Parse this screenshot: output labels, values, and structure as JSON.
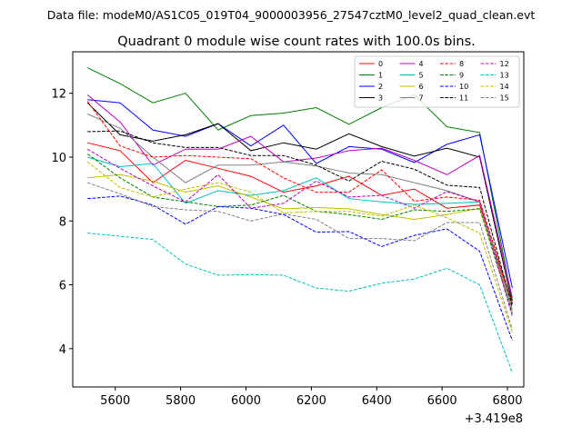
{
  "chart_data": {
    "type": "line",
    "suptitle": "Data file: modeM0/AS1C05_019T04_9000003956_27547cztM0_level2_quad_clean.evt",
    "title": "Quadrant 0 module wise count rates with 100.0s bins.",
    "xlabel": "",
    "ylabel": "",
    "x_offset_label": "+3.419e8",
    "xlim": [
      5470,
      6850
    ],
    "ylim": [
      2.8,
      13.3
    ],
    "xticks": [
      5600,
      5800,
      6000,
      6200,
      6400,
      6600,
      6800
    ],
    "yticks": [
      4,
      6,
      8,
      10,
      12
    ],
    "legend_position": "top-right",
    "grid": false,
    "x": [
      5515,
      5615,
      5715,
      5815,
      5915,
      6015,
      6115,
      6215,
      6315,
      6415,
      6515,
      6615,
      6715,
      6815
    ],
    "series": [
      {
        "name": "0",
        "color": "#ff0000",
        "dash": "solid",
        "values": [
          10.45,
          10.2,
          9.2,
          9.9,
          9.65,
          9.4,
          8.9,
          9.1,
          9.4,
          8.8,
          9.0,
          8.4,
          8.5,
          5.4
        ]
      },
      {
        "name": "1",
        "color": "#008000",
        "dash": "solid",
        "values": [
          12.8,
          12.3,
          11.7,
          12.0,
          10.85,
          11.3,
          11.38,
          11.55,
          11.03,
          11.55,
          11.95,
          10.95,
          10.77,
          5.5
        ]
      },
      {
        "name": "2",
        "color": "#0000ff",
        "dash": "solid",
        "values": [
          11.8,
          11.7,
          10.85,
          10.65,
          11.05,
          10.35,
          11.0,
          9.8,
          10.33,
          10.25,
          9.83,
          10.4,
          10.7,
          5.9
        ]
      },
      {
        "name": "3",
        "color": "#000000",
        "dash": "solid",
        "values": [
          11.7,
          10.7,
          10.5,
          10.7,
          11.05,
          10.2,
          10.45,
          10.25,
          10.73,
          10.33,
          10.03,
          10.28,
          10.0,
          5.4
        ]
      },
      {
        "name": "4",
        "color": "#bf00bf",
        "dash": "solid",
        "values": [
          11.95,
          11.1,
          9.75,
          10.25,
          10.25,
          10.65,
          9.85,
          9.97,
          10.2,
          10.28,
          9.9,
          9.45,
          10.05,
          5.6
        ]
      },
      {
        "name": "5",
        "color": "#00bfbf",
        "dash": "solid",
        "values": [
          10.0,
          9.7,
          9.8,
          8.55,
          8.95,
          8.8,
          8.95,
          9.35,
          8.7,
          8.6,
          8.52,
          8.55,
          8.6,
          5.2
        ]
      },
      {
        "name": "6",
        "color": "#bfbf00",
        "dash": "solid",
        "values": [
          9.35,
          9.45,
          9.25,
          8.9,
          9.1,
          8.75,
          8.38,
          8.42,
          8.38,
          8.2,
          8.05,
          8.2,
          8.4,
          5.2
        ]
      },
      {
        "name": "7",
        "color": "#808080",
        "dash": "solid",
        "values": [
          11.35,
          10.9,
          10.0,
          9.2,
          9.75,
          9.75,
          9.85,
          9.72,
          9.5,
          9.45,
          9.2,
          8.95,
          8.6,
          5.2
        ]
      },
      {
        "name": "8",
        "color": "#ff0000",
        "dash": "dashed",
        "values": [
          11.75,
          10.35,
          10.0,
          10.05,
          10.0,
          9.95,
          9.35,
          8.9,
          8.9,
          9.6,
          8.62,
          8.75,
          8.65,
          5.4
        ]
      },
      {
        "name": "9",
        "color": "#008000",
        "dash": "dashed",
        "values": [
          10.1,
          9.35,
          8.75,
          8.6,
          8.45,
          8.5,
          8.8,
          8.3,
          8.2,
          8.05,
          8.35,
          8.3,
          8.38,
          5.1
        ]
      },
      {
        "name": "10",
        "color": "#0000ff",
        "dash": "dashed",
        "values": [
          8.7,
          8.78,
          8.5,
          7.9,
          8.45,
          8.4,
          8.2,
          7.65,
          7.67,
          7.2,
          7.55,
          7.75,
          7.05,
          4.25
        ]
      },
      {
        "name": "11",
        "color": "#000000",
        "dash": "dashed",
        "values": [
          10.8,
          10.82,
          10.45,
          10.3,
          10.3,
          10.05,
          10.05,
          9.75,
          9.25,
          9.87,
          9.62,
          9.12,
          9.05,
          5.3
        ]
      },
      {
        "name": "12",
        "color": "#bf00bf",
        "dash": "dashed",
        "values": [
          10.25,
          9.65,
          9.1,
          8.6,
          9.45,
          8.4,
          8.55,
          9.25,
          8.75,
          8.8,
          8.4,
          8.92,
          8.6,
          5.0
        ]
      },
      {
        "name": "13",
        "color": "#00bfbf",
        "dash": "dashed",
        "values": [
          7.62,
          7.52,
          7.42,
          6.65,
          6.3,
          6.32,
          6.3,
          5.9,
          5.8,
          6.05,
          6.18,
          6.52,
          6.0,
          3.25
        ]
      },
      {
        "name": "14",
        "color": "#bfbf00",
        "dash": "dashed",
        "values": [
          9.85,
          9.05,
          8.75,
          9.0,
          9.2,
          8.9,
          8.25,
          8.3,
          8.3,
          8.15,
          8.5,
          8.1,
          7.62,
          4.5
        ]
      },
      {
        "name": "15",
        "color": "#808080",
        "dash": "dashed",
        "values": [
          9.2,
          8.85,
          8.45,
          8.35,
          8.3,
          8.0,
          8.22,
          8.05,
          7.45,
          7.45,
          7.38,
          7.95,
          7.95,
          4.6
        ]
      }
    ]
  }
}
